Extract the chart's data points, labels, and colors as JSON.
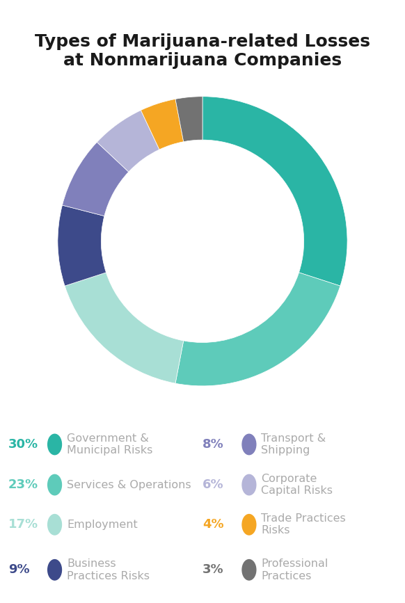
{
  "title": "Types of Marijuana-related Losses\nat Nonmarijuana Companies",
  "slices": [
    {
      "label": "Government &\nMunicipal Risks",
      "pct": 30,
      "color": "#2ab5a5",
      "pct_color": "#2ab5a5"
    },
    {
      "label": "Services & Operations",
      "pct": 23,
      "color": "#5ecbba",
      "pct_color": "#5ecbba"
    },
    {
      "label": "Employment",
      "pct": 17,
      "color": "#a8dfd5",
      "pct_color": "#a8dfd5"
    },
    {
      "label": "Business\nPractices Risks",
      "pct": 9,
      "color": "#3d4a8a",
      "pct_color": "#3d4a8a"
    },
    {
      "label": "Transport &\nShipping",
      "pct": 8,
      "color": "#8080bb",
      "pct_color": "#8080bb"
    },
    {
      "label": "Corporate\nCapital Risks",
      "pct": 6,
      "color": "#b5b5d8",
      "pct_color": "#b5b5d8"
    },
    {
      "label": "Trade Practices\nRisks",
      "pct": 4,
      "color": "#f5a623",
      "pct_color": "#f5a623"
    },
    {
      "label": "Professional\nPractices",
      "pct": 3,
      "color": "#727272",
      "pct_color": "#727272"
    }
  ],
  "background_color": "#ffffff",
  "title_fontsize": 18,
  "legend_pct_fontsize": 13,
  "legend_label_fontsize": 11.5,
  "donut_width": 0.3
}
